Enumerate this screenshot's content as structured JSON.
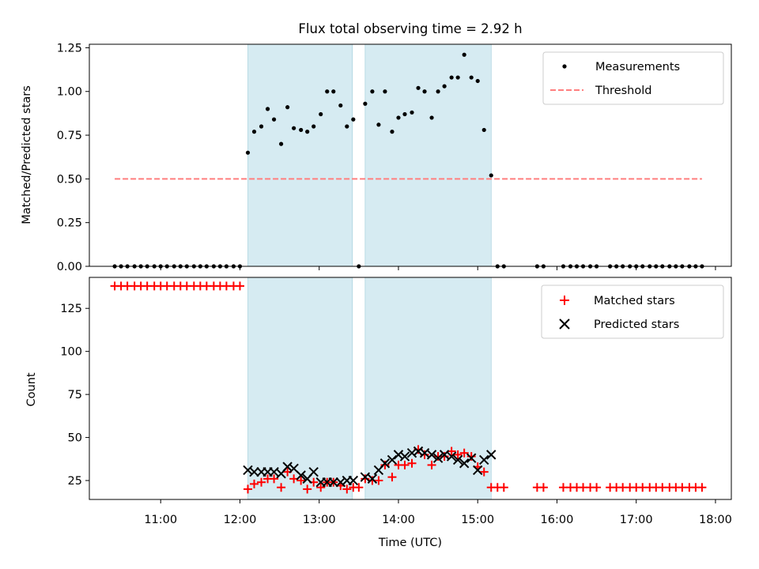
{
  "title": "Flux total observing time = 2.92 h",
  "chart_data": [
    {
      "type": "scatter",
      "title": "Flux total observing time = 2.92 h",
      "ylabel": "Matched/Predicted stars",
      "xlabel": "",
      "x_unit": "hours UTC",
      "xlim": [
        10.1,
        18.2
      ],
      "ylim": [
        0,
        1.27
      ],
      "yticks": [
        "0.00",
        "0.25",
        "0.50",
        "0.75",
        "1.00",
        "1.25"
      ],
      "grid": false,
      "legend": "top-right",
      "shaded_intervals": [
        [
          12.1,
          13.42
        ],
        [
          13.58,
          15.17
        ]
      ],
      "threshold": {
        "name": "Threshold",
        "value": 0.5,
        "x_range": [
          10.42,
          17.83
        ],
        "color": "#ff7f7f"
      },
      "measurements": {
        "name": "Measurements",
        "color": "#000000",
        "points": [
          [
            10.42,
            0
          ],
          [
            10.5,
            0
          ],
          [
            10.58,
            0
          ],
          [
            10.67,
            0
          ],
          [
            10.75,
            0
          ],
          [
            10.83,
            0
          ],
          [
            10.92,
            0
          ],
          [
            11.0,
            0
          ],
          [
            11.08,
            0
          ],
          [
            11.17,
            0
          ],
          [
            11.25,
            0
          ],
          [
            11.33,
            0
          ],
          [
            11.42,
            0
          ],
          [
            11.5,
            0
          ],
          [
            11.58,
            0
          ],
          [
            11.67,
            0
          ],
          [
            11.75,
            0
          ],
          [
            11.83,
            0
          ],
          [
            11.92,
            0
          ],
          [
            12.0,
            0
          ],
          [
            12.1,
            0.65
          ],
          [
            12.18,
            0.77
          ],
          [
            12.27,
            0.8
          ],
          [
            12.35,
            0.9
          ],
          [
            12.43,
            0.84
          ],
          [
            12.52,
            0.7
          ],
          [
            12.6,
            0.91
          ],
          [
            12.68,
            0.79
          ],
          [
            12.77,
            0.78
          ],
          [
            12.85,
            0.77
          ],
          [
            12.93,
            0.8
          ],
          [
            13.02,
            0.87
          ],
          [
            13.1,
            1.0
          ],
          [
            13.18,
            1.0
          ],
          [
            13.27,
            0.92
          ],
          [
            13.35,
            0.8
          ],
          [
            13.43,
            0.84
          ],
          [
            13.5,
            0
          ],
          [
            13.58,
            0.93
          ],
          [
            13.67,
            1.0
          ],
          [
            13.75,
            0.81
          ],
          [
            13.83,
            1.0
          ],
          [
            13.92,
            0.77
          ],
          [
            14.0,
            0.85
          ],
          [
            14.08,
            0.87
          ],
          [
            14.17,
            0.88
          ],
          [
            14.25,
            1.02
          ],
          [
            14.33,
            1.0
          ],
          [
            14.42,
            0.85
          ],
          [
            14.5,
            1.0
          ],
          [
            14.58,
            1.03
          ],
          [
            14.67,
            1.08
          ],
          [
            14.75,
            1.08
          ],
          [
            14.83,
            1.21
          ],
          [
            14.92,
            1.08
          ],
          [
            15.0,
            1.06
          ],
          [
            15.08,
            0.78
          ],
          [
            15.17,
            0.52
          ],
          [
            15.25,
            0
          ],
          [
            15.33,
            0
          ],
          [
            15.75,
            0
          ],
          [
            15.83,
            0
          ],
          [
            16.08,
            0
          ],
          [
            16.17,
            0
          ],
          [
            16.25,
            0
          ],
          [
            16.33,
            0
          ],
          [
            16.42,
            0
          ],
          [
            16.5,
            0
          ],
          [
            16.67,
            0
          ],
          [
            16.75,
            0
          ],
          [
            16.83,
            0
          ],
          [
            16.92,
            0
          ],
          [
            17.0,
            0
          ],
          [
            17.08,
            0
          ],
          [
            17.17,
            0
          ],
          [
            17.25,
            0
          ],
          [
            17.33,
            0
          ],
          [
            17.42,
            0
          ],
          [
            17.5,
            0
          ],
          [
            17.58,
            0
          ],
          [
            17.67,
            0
          ],
          [
            17.75,
            0
          ],
          [
            17.83,
            0
          ]
        ]
      }
    },
    {
      "type": "scatter",
      "title": "",
      "ylabel": "Count",
      "xlabel": "Time (UTC)",
      "x_unit": "hours UTC",
      "xlim": [
        10.1,
        18.2
      ],
      "ylim": [
        14,
        143
      ],
      "yticks": [
        "25",
        "50",
        "75",
        "100",
        "125"
      ],
      "xticks": [
        "11:00",
        "12:00",
        "13:00",
        "14:00",
        "15:00",
        "16:00",
        "17:00",
        "18:00"
      ],
      "grid": false,
      "legend": "top-right",
      "shaded_intervals": [
        [
          12.1,
          13.42
        ],
        [
          13.58,
          15.17
        ]
      ],
      "series": [
        {
          "name": "Matched stars",
          "marker": "plus",
          "color": "#ff0000",
          "points": [
            [
              10.42,
              138
            ],
            [
              10.5,
              138
            ],
            [
              10.58,
              138
            ],
            [
              10.67,
              138
            ],
            [
              10.75,
              138
            ],
            [
              10.83,
              138
            ],
            [
              10.92,
              138
            ],
            [
              11.0,
              138
            ],
            [
              11.08,
              138
            ],
            [
              11.17,
              138
            ],
            [
              11.25,
              138
            ],
            [
              11.33,
              138
            ],
            [
              11.42,
              138
            ],
            [
              11.5,
              138
            ],
            [
              11.58,
              138
            ],
            [
              11.67,
              138
            ],
            [
              11.75,
              138
            ],
            [
              11.83,
              138
            ],
            [
              11.92,
              138
            ],
            [
              12.0,
              138
            ],
            [
              12.1,
              20
            ],
            [
              12.18,
              23
            ],
            [
              12.27,
              24
            ],
            [
              12.35,
              26
            ],
            [
              12.43,
              26
            ],
            [
              12.52,
              21
            ],
            [
              12.6,
              30
            ],
            [
              12.68,
              26
            ],
            [
              12.77,
              25
            ],
            [
              12.85,
              20
            ],
            [
              12.93,
              24
            ],
            [
              13.02,
              21
            ],
            [
              13.1,
              24
            ],
            [
              13.18,
              24
            ],
            [
              13.27,
              22
            ],
            [
              13.35,
              20
            ],
            [
              13.43,
              21
            ],
            [
              13.5,
              21
            ],
            [
              13.58,
              26
            ],
            [
              13.67,
              25
            ],
            [
              13.75,
              25
            ],
            [
              13.83,
              34
            ],
            [
              13.92,
              27
            ],
            [
              14.0,
              34
            ],
            [
              14.08,
              34
            ],
            [
              14.17,
              35
            ],
            [
              14.25,
              43
            ],
            [
              14.33,
              40
            ],
            [
              14.42,
              34
            ],
            [
              14.5,
              39
            ],
            [
              14.58,
              39
            ],
            [
              14.67,
              42
            ],
            [
              14.75,
              40
            ],
            [
              14.83,
              41
            ],
            [
              14.92,
              39
            ],
            [
              15.0,
              33
            ],
            [
              15.08,
              30
            ],
            [
              15.17,
              21
            ],
            [
              15.25,
              21
            ],
            [
              15.33,
              21
            ],
            [
              15.75,
              21
            ],
            [
              15.83,
              21
            ],
            [
              16.08,
              21
            ],
            [
              16.17,
              21
            ],
            [
              16.25,
              21
            ],
            [
              16.33,
              21
            ],
            [
              16.42,
              21
            ],
            [
              16.5,
              21
            ],
            [
              16.67,
              21
            ],
            [
              16.75,
              21
            ],
            [
              16.83,
              21
            ],
            [
              16.92,
              21
            ],
            [
              17.0,
              21
            ],
            [
              17.08,
              21
            ],
            [
              17.17,
              21
            ],
            [
              17.25,
              21
            ],
            [
              17.33,
              21
            ],
            [
              17.42,
              21
            ],
            [
              17.5,
              21
            ],
            [
              17.58,
              21
            ],
            [
              17.67,
              21
            ],
            [
              17.75,
              21
            ],
            [
              17.83,
              21
            ]
          ]
        },
        {
          "name": "Predicted stars",
          "marker": "x",
          "color": "#000000",
          "points": [
            [
              12.1,
              31
            ],
            [
              12.18,
              30
            ],
            [
              12.27,
              30
            ],
            [
              12.35,
              30
            ],
            [
              12.43,
              30
            ],
            [
              12.52,
              29
            ],
            [
              12.6,
              33
            ],
            [
              12.68,
              32
            ],
            [
              12.77,
              28
            ],
            [
              12.85,
              26
            ],
            [
              12.93,
              30
            ],
            [
              13.02,
              24
            ],
            [
              13.1,
              24
            ],
            [
              13.18,
              24
            ],
            [
              13.27,
              24
            ],
            [
              13.35,
              25
            ],
            [
              13.43,
              25
            ],
            [
              13.58,
              27
            ],
            [
              13.67,
              26
            ],
            [
              13.75,
              31
            ],
            [
              13.83,
              35
            ],
            [
              13.92,
              37
            ],
            [
              14.0,
              40
            ],
            [
              14.08,
              39
            ],
            [
              14.17,
              41
            ],
            [
              14.25,
              42
            ],
            [
              14.33,
              41
            ],
            [
              14.42,
              40
            ],
            [
              14.5,
              38
            ],
            [
              14.58,
              40
            ],
            [
              14.67,
              39
            ],
            [
              14.75,
              37
            ],
            [
              14.83,
              35
            ],
            [
              14.92,
              38
            ],
            [
              15.0,
              31
            ],
            [
              15.08,
              37
            ],
            [
              15.17,
              40
            ]
          ]
        }
      ]
    }
  ]
}
